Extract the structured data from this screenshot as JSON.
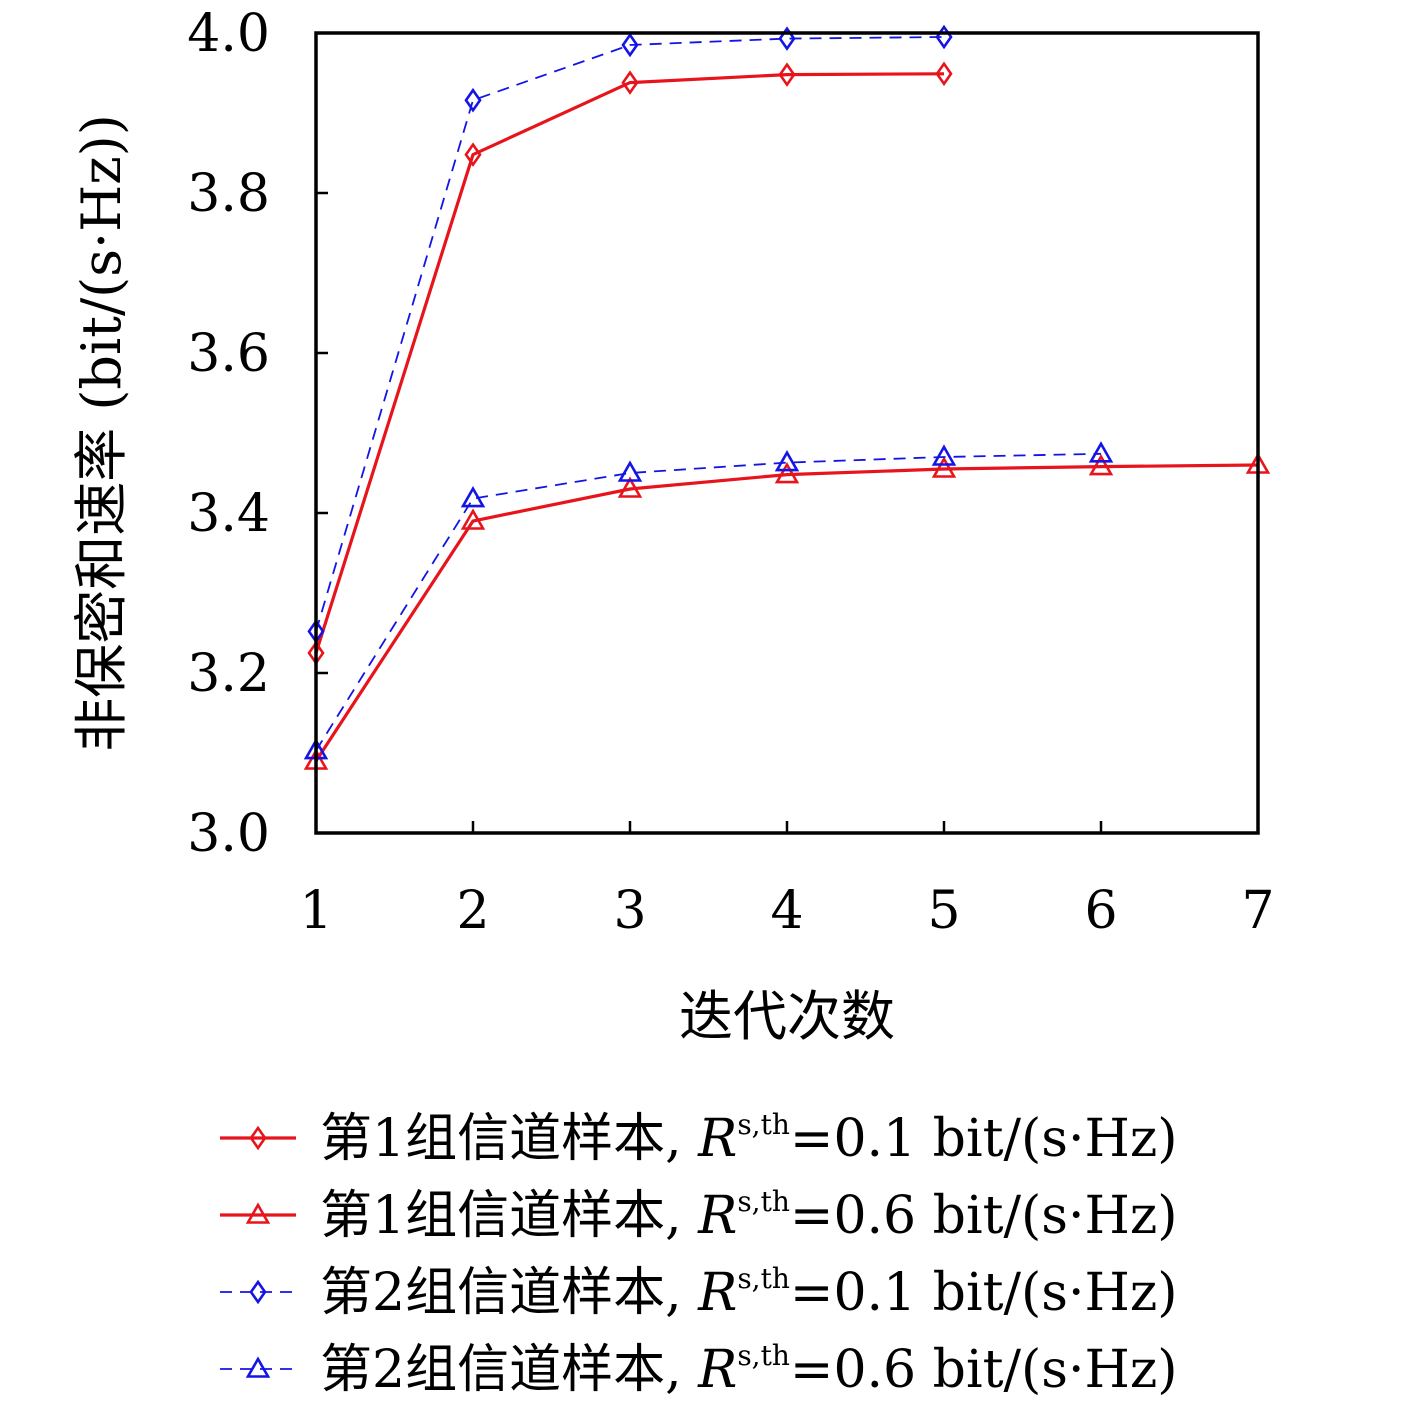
{
  "chart_data": {
    "type": "line",
    "xlabel": "迭代次数",
    "ylabel": "非保密和速率 (bit/(s·Hz))",
    "xlim": [
      1,
      7
    ],
    "ylim": [
      3.0,
      4.0
    ],
    "xticks": [
      "1",
      "2",
      "3",
      "4",
      "5",
      "6",
      "7"
    ],
    "yticks": [
      "3.0",
      "3.2",
      "3.4",
      "3.6",
      "3.8",
      "4.0"
    ],
    "grid": false,
    "legend_position": "bottom",
    "series": [
      {
        "name": "第1组信道样本, R^{s,th}=0.1 bit/(s·Hz)",
        "legend_prefix": "第1组信道样本, ",
        "legend_var": "R",
        "legend_sup": "s,th",
        "legend_suffix": "=0.1 bit/(s·Hz)",
        "color": "#e8141c",
        "line_style": "solid",
        "marker": "diamond",
        "x": [
          1,
          2,
          3,
          4,
          5
        ],
        "y": [
          3.225,
          3.848,
          3.938,
          3.948,
          3.949
        ]
      },
      {
        "name": "第1组信道样本, R^{s,th}=0.6 bit/(s·Hz)",
        "legend_prefix": "第1组信道样本, ",
        "legend_var": "R",
        "legend_sup": "s,th",
        "legend_suffix": "=0.6 bit/(s·Hz)",
        "color": "#e8141c",
        "line_style": "solid",
        "marker": "triangle",
        "x": [
          1,
          2,
          3,
          4,
          5,
          6,
          7
        ],
        "y": [
          3.09,
          3.39,
          3.43,
          3.448,
          3.455,
          3.458,
          3.46
        ]
      },
      {
        "name": "第2组信道样本, R^{s,th}=0.1 bit/(s·Hz)",
        "legend_prefix": "第2组信道样本, ",
        "legend_var": "R",
        "legend_sup": "s,th",
        "legend_suffix": "=0.1 bit/(s·Hz)",
        "color": "#1414e6",
        "line_style": "dashed",
        "marker": "diamond",
        "x": [
          1,
          2,
          3,
          4,
          5
        ],
        "y": [
          3.252,
          3.916,
          3.985,
          3.993,
          3.995
        ]
      },
      {
        "name": "第2组信道样本, R^{s,th}=0.6 bit/(s·Hz)",
        "legend_prefix": "第2组信道样本, ",
        "legend_var": "R",
        "legend_sup": "s,th",
        "legend_suffix": "=0.6 bit/(s·Hz)",
        "color": "#1414e6",
        "line_style": "dashed",
        "marker": "triangle",
        "x": [
          1,
          2,
          3,
          4,
          5,
          6
        ],
        "y": [
          3.103,
          3.418,
          3.45,
          3.463,
          3.47,
          3.474
        ]
      }
    ]
  }
}
